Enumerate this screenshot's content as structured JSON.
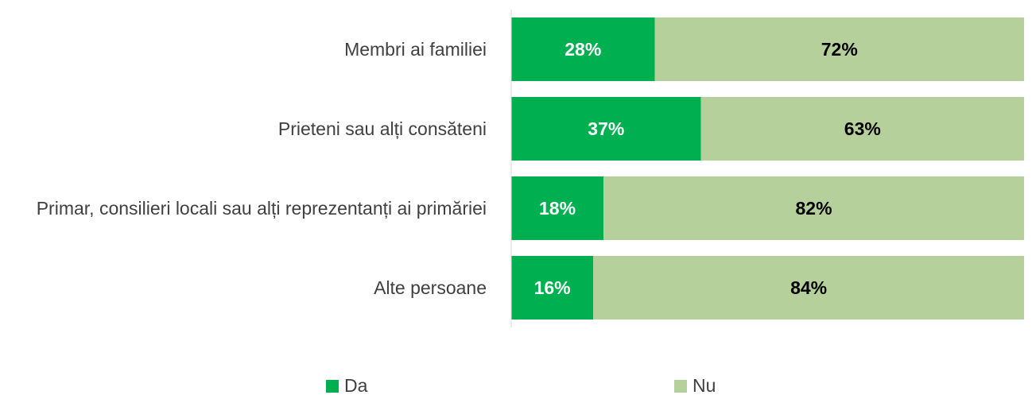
{
  "chart_data": {
    "type": "bar",
    "orientation": "horizontal",
    "stacked": true,
    "categories": [
      "Membri ai familiei",
      "Prieteni sau alți consăteni",
      "Primar, consilieri locali sau alți reprezentanți ai primăriei",
      "Alte persoane"
    ],
    "series": [
      {
        "name": "Da",
        "color": "#00b050",
        "label_color": "#ffffff",
        "values": [
          28,
          37,
          18,
          16
        ],
        "value_labels": [
          "28%",
          "37%",
          "18%",
          "16%"
        ]
      },
      {
        "name": "Nu",
        "color": "#b5d09a",
        "label_color": "#000000",
        "values": [
          72,
          63,
          82,
          84
        ],
        "value_labels": [
          "72%",
          "63%",
          "82%",
          "84%"
        ]
      }
    ],
    "xlim": [
      0,
      100
    ],
    "legend": "bottom"
  }
}
